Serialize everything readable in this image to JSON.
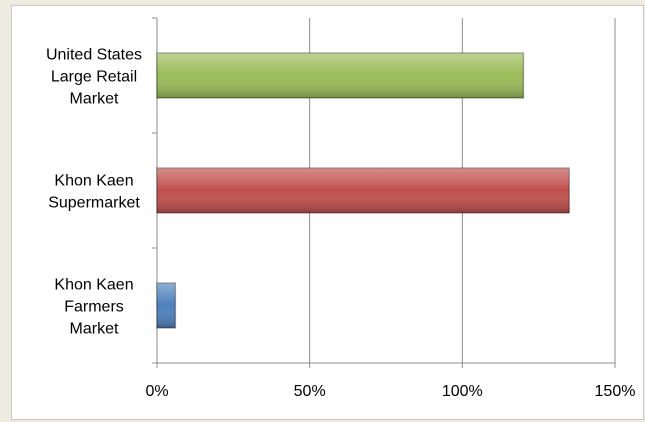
{
  "chart_data": {
    "type": "bar",
    "orientation": "horizontal",
    "categories": [
      [
        "United States",
        "Large Retail",
        "Market"
      ],
      [
        "Khon Kaen",
        "Supermarket"
      ],
      [
        "Khon Kaen",
        "Farmers",
        "Market"
      ]
    ],
    "values": [
      120,
      135,
      6
    ],
    "bar_colors": [
      "#9bbb59",
      "#c0504d",
      "#4f81bd"
    ],
    "xlim": [
      0,
      150
    ],
    "xticks": [
      0,
      50,
      100,
      150
    ],
    "xtick_labels": [
      "0%",
      "50%",
      "100%",
      "150%"
    ],
    "grid": true,
    "legend": "none"
  }
}
